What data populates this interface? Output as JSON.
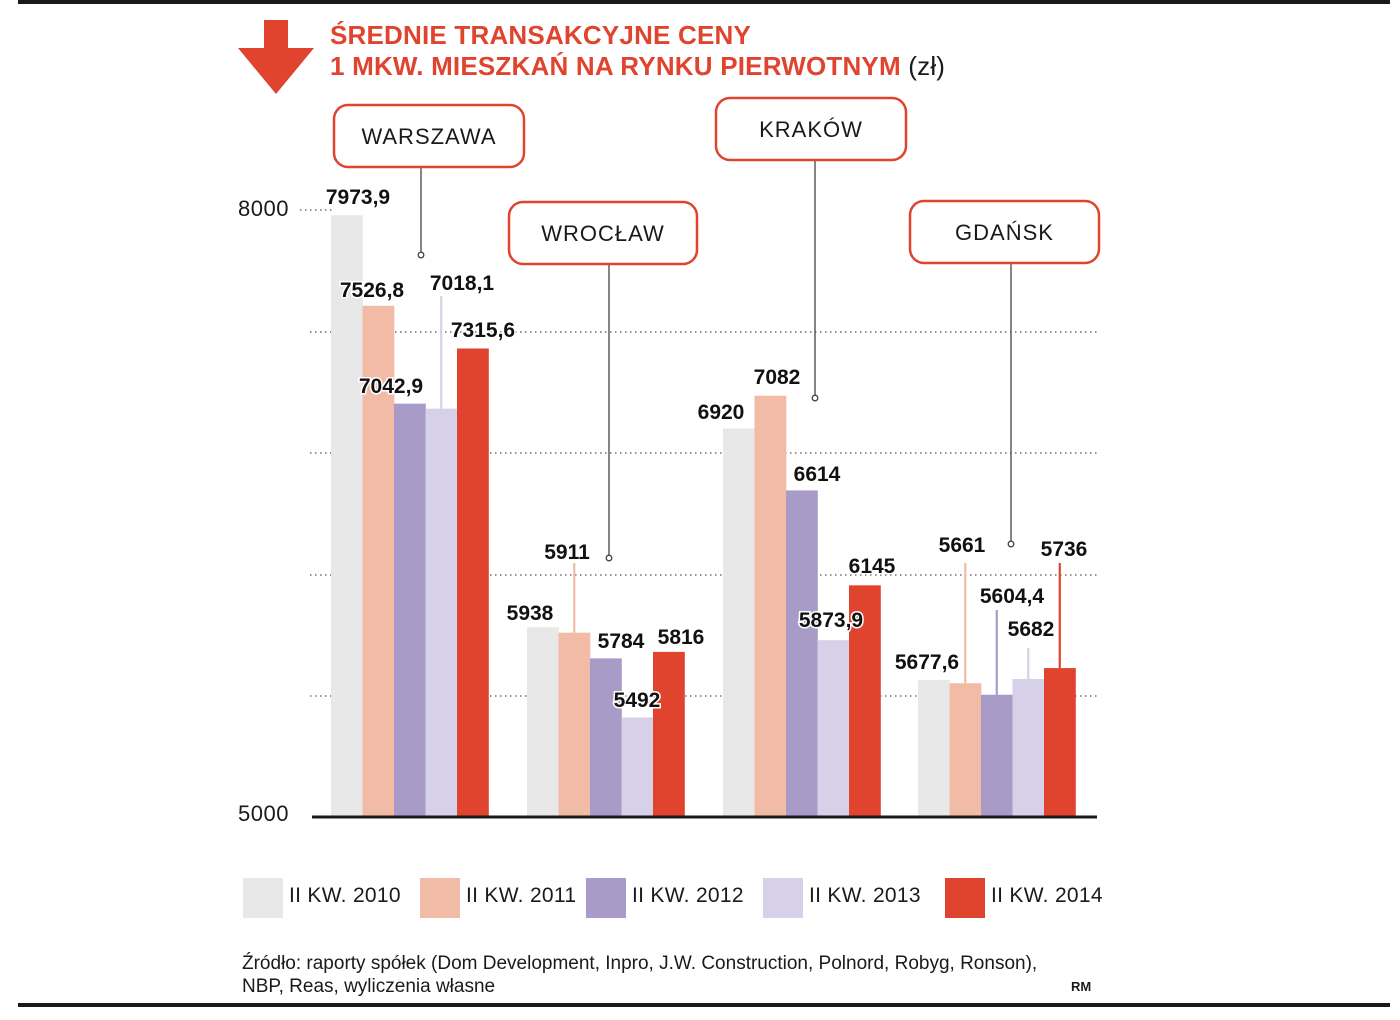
{
  "title": {
    "line1": "ŚREDNIE TRANSAKCYJNE CENY",
    "line2": "1 MKW. MIESZKAŃ NA RYNKU PIERWOTNYM",
    "unit": "(zł)"
  },
  "icon": "arrow-down-icon",
  "colors": {
    "accent": "#e0442e",
    "series": [
      "#e8e8e8",
      "#f2bba6",
      "#a99bc8",
      "#d6d0e8",
      "#e0442e"
    ]
  },
  "legend": [
    {
      "label": "II KW. 2010",
      "color": "#e8e8e8"
    },
    {
      "label": "II KW. 2011",
      "color": "#f2bba6"
    },
    {
      "label": "II KW. 2012",
      "color": "#a99bc8"
    },
    {
      "label": "II KW. 2013",
      "color": "#d6d0e8"
    },
    {
      "label": "II KW. 2014",
      "color": "#e0442e"
    }
  ],
  "source": "Źródło: raporty spółek (Dom Development, Inpro, J.W. Construction, Polnord, Robyg, Ronson), NBP, Reas, wyliczenia własne",
  "author": "RM",
  "chart_data": {
    "type": "bar",
    "categories": [
      "WARSZAWA",
      "WROCŁAW",
      "KRAKÓW",
      "GDAŃSK"
    ],
    "series": [
      {
        "name": "II KW. 2010",
        "values": [
          7973.9,
          5938,
          6920,
          5677.6
        ],
        "labels": [
          "7973,9",
          "5938",
          "6920",
          "5677,6"
        ]
      },
      {
        "name": "II KW. 2011",
        "values": [
          7526.8,
          5911,
          7082,
          5661
        ],
        "labels": [
          "7526,8",
          "5911",
          "7082",
          "5661"
        ]
      },
      {
        "name": "II KW. 2012",
        "values": [
          7042.9,
          5784,
          6614,
          5604.4
        ],
        "labels": [
          "7042,9",
          "5784",
          "6614",
          "5604,4"
        ]
      },
      {
        "name": "II KW. 2013",
        "values": [
          7018.1,
          5492,
          5873.9,
          5682
        ],
        "labels": [
          "7018,1",
          "5492",
          "5873,9",
          "5682"
        ]
      },
      {
        "name": "II KW. 2014",
        "values": [
          7315.6,
          5816,
          6145,
          5736
        ],
        "labels": [
          "7315,6",
          "5816",
          "6145",
          "5736"
        ]
      }
    ],
    "yticks": [
      "8000",
      "5000"
    ],
    "ylim": [
      5000,
      8000
    ],
    "grid": true,
    "legend_position": "bottom"
  }
}
